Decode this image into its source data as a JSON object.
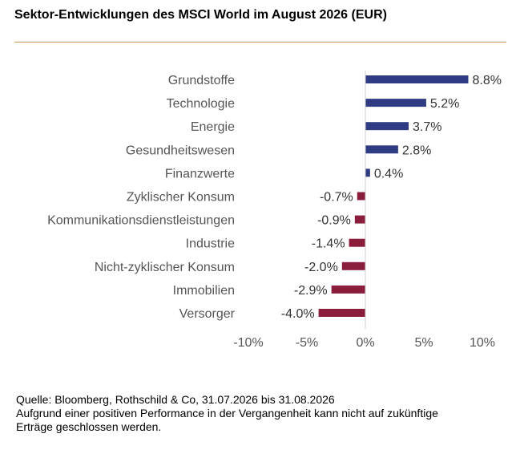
{
  "title": "Sektor-Entwicklungen des MSCI World im August 2026 (EUR)",
  "colors": {
    "positive": "#2f3c84",
    "negative": "#8a1c3c",
    "rule": "#c89a5a",
    "text": "#555555"
  },
  "chart_data": {
    "type": "bar",
    "orientation": "horizontal",
    "categories": [
      "Grundstoffe",
      "Technologie",
      "Energie",
      "Gesundheitswesen",
      "Finanzwerte",
      "Zyklischer Konsum",
      "Kommunikationsdienstleistungen",
      "Industrie",
      "Nicht-zyklischer Konsum",
      "Immobilien",
      "Versorger"
    ],
    "values": [
      8.8,
      5.2,
      3.7,
      2.8,
      0.4,
      -0.7,
      -0.9,
      -1.4,
      -2.0,
      -2.9,
      -4.0
    ],
    "data_labels": [
      "8.8%",
      "5.2%",
      "3.7%",
      "2.8%",
      "0.4%",
      "-0.7%",
      "-0.9%",
      "-1.4%",
      "-2.0%",
      "-2.9%",
      "-4.0%"
    ],
    "xlim": [
      -10,
      10
    ],
    "xticks": [
      -10,
      -5,
      0,
      5,
      10
    ],
    "xtick_labels": [
      "-10%",
      "-5%",
      "0%",
      "5%",
      "10%"
    ],
    "grid": false,
    "legend": "none"
  },
  "footer": {
    "source": "Quelle: Bloomberg, Rothschild & Co, 31.07.2026 bis 31.08.2026",
    "disclaimer_line1": "Aufgrund einer positiven Performance in der Vergangenheit kann nicht auf zukünftige",
    "disclaimer_line2": "Erträge geschlossen werden."
  }
}
